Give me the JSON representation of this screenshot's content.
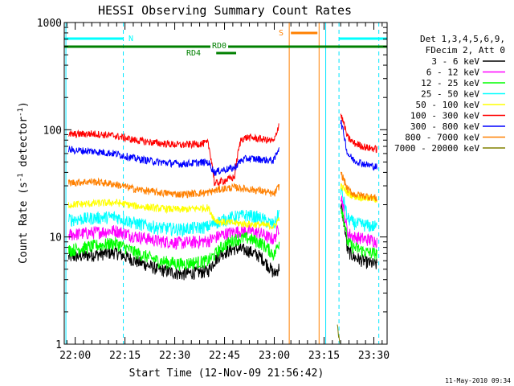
{
  "chart_data": {
    "type": "line",
    "title": "HESSI Observing Summary Count Rates",
    "xlabel": "Start Time (12-Nov-09 21:56:42)",
    "ylabel_main": "Count Rate (s",
    "ylabel_sup1": "-1",
    "ylabel_mid": " detector",
    "ylabel_sup2": "-1",
    "ylabel_end": ")",
    "x_ticks": [
      "22:00",
      "22:15",
      "22:30",
      "22:45",
      "23:00",
      "23:15",
      "23:30"
    ],
    "x_tick_minutes": [
      0,
      15,
      30,
      45,
      60,
      75,
      90
    ],
    "x_range_minutes": [
      -3.3,
      94
    ],
    "y_scale": "log",
    "y_range": [
      1,
      1000
    ],
    "y_ticks": [
      "1",
      "10",
      "100",
      "1000"
    ],
    "y_tick_values": [
      1,
      10,
      100,
      1000
    ],
    "legend_title": [
      "Det 1,3,4,5,6,9,",
      "FDecim 2, Att 0"
    ],
    "series": [
      {
        "name": "3 - 6 keV",
        "color": "#000000",
        "x": [
          -2,
          5,
          12,
          18,
          25,
          32,
          40,
          42,
          44,
          48,
          52,
          56,
          58,
          60,
          61.5,
          80,
          82,
          84,
          88,
          91
        ],
        "y": [
          6.5,
          6.8,
          7.2,
          6.0,
          5.0,
          4.5,
          4.8,
          6.0,
          7.0,
          7.8,
          7.5,
          6.5,
          5.5,
          4.5,
          5.2,
          20,
          7.5,
          6.5,
          5.8,
          5.5
        ]
      },
      {
        "name": "6 - 12 keV",
        "color": "#ff00ff",
        "x": [
          -2,
          5,
          12,
          18,
          25,
          32,
          40,
          42,
          44,
          48,
          52,
          56,
          58,
          60,
          61.5,
          80,
          82,
          84,
          88,
          91
        ],
        "y": [
          10.5,
          11,
          11.5,
          10.2,
          9.2,
          8.8,
          9.2,
          9.8,
          10.5,
          11.2,
          11.5,
          10.8,
          10,
          9.5,
          12.5,
          25,
          11,
          10,
          9.5,
          9.2
        ]
      },
      {
        "name": "12 - 25 keV",
        "color": "#00ff00",
        "x": [
          -2,
          5,
          12,
          18,
          25,
          32,
          40,
          42,
          44,
          48,
          52,
          56,
          58,
          60,
          61.5,
          80,
          82,
          84,
          88,
          91
        ],
        "y": [
          7.5,
          8.2,
          8.8,
          7.2,
          6.0,
          5.6,
          6.0,
          6.8,
          8.0,
          9.5,
          9.8,
          8.8,
          7.8,
          6.8,
          9.0,
          20,
          9.0,
          8.0,
          7.2,
          7.0
        ]
      },
      {
        "name": "25 - 50 keV",
        "color": "#00ffff",
        "x": [
          -2,
          5,
          12,
          18,
          25,
          32,
          40,
          42,
          44,
          48,
          52,
          56,
          58,
          60,
          61.5,
          80,
          82,
          84,
          88,
          91
        ],
        "y": [
          14.5,
          15,
          15.5,
          13.5,
          12.2,
          11.8,
          12.5,
          13.5,
          14.2,
          15.5,
          16,
          15,
          13.8,
          13,
          17,
          28,
          15,
          13.5,
          12.8,
          12.5
        ]
      },
      {
        "name": "50 - 100 keV",
        "color": "#ffff00",
        "x": [
          -2,
          5,
          12,
          18,
          25,
          32,
          40,
          42,
          44,
          48,
          52,
          56,
          58,
          60,
          61.5,
          80,
          82,
          84,
          88,
          91
        ],
        "y": [
          20,
          20.5,
          21,
          19.5,
          18.5,
          18,
          18.8,
          14.5,
          13.8,
          13.5,
          13.2,
          13,
          12.8,
          12.5,
          15,
          30,
          26,
          24,
          23,
          22.5
        ]
      },
      {
        "name": "100 - 300 keV",
        "color": "#ff0000",
        "x": [
          -2,
          5,
          12,
          18,
          25,
          32,
          40,
          42,
          44,
          48,
          50,
          52,
          56,
          58,
          60,
          61.5,
          80,
          82,
          84,
          88,
          91
        ],
        "y": [
          90,
          92,
          88,
          80,
          75,
          72,
          75,
          31,
          33,
          36,
          82,
          85,
          82,
          80,
          78,
          115,
          140,
          85,
          75,
          68,
          66
        ]
      },
      {
        "name": "300 - 800 keV",
        "color": "#0000ff",
        "x": [
          -2,
          5,
          12,
          18,
          25,
          32,
          40,
          42,
          44,
          48,
          50,
          52,
          56,
          58,
          60,
          61.5,
          80,
          82,
          84,
          88,
          91
        ],
        "y": [
          65,
          63,
          60,
          54,
          50,
          48,
          50,
          40,
          42,
          44,
          52,
          54,
          53,
          52,
          52,
          70,
          120,
          60,
          52,
          47,
          45
        ]
      },
      {
        "name": "800 - 7000 keV",
        "color": "#ff8000",
        "x": [
          -2,
          5,
          12,
          18,
          25,
          32,
          40,
          42,
          44,
          48,
          52,
          56,
          58,
          60,
          61.5,
          80,
          82,
          84,
          88,
          91
        ],
        "y": [
          32,
          33,
          31,
          28,
          26,
          25,
          26,
          27,
          28,
          29,
          28,
          27,
          26,
          25,
          30,
          40,
          28,
          25,
          24,
          23
        ]
      },
      {
        "name": "7000 - 20000 keV",
        "color": "#808000",
        "x": [
          79,
          79.4,
          79.8
        ],
        "y": [
          1.5,
          1.2,
          1.0
        ]
      }
    ],
    "flags": [
      {
        "label": "N",
        "color": "#00ffff",
        "segments": [
          [
            -3.3,
            14.5
          ],
          [
            79.5,
            94
          ]
        ]
      },
      {
        "label": "RD0",
        "color": "#008000",
        "segments": [
          [
            -3.3,
            94
          ]
        ]
      },
      {
        "label": "RD4",
        "color": "#008000",
        "segments": [
          [
            42.5,
            48.5
          ]
        ]
      },
      {
        "label": "S",
        "color": "#ff8000",
        "segments": [
          [
            65,
            73
          ]
        ]
      }
    ],
    "vertical_markers": {
      "dashed_cyan_minutes": [
        14.5,
        79.5,
        91.5
      ],
      "solid_cyan_minutes": [
        -2.8,
        75.5
      ],
      "orange_minutes": [
        64.5,
        73.5
      ]
    },
    "grid": false,
    "legend_position": "right"
  },
  "timestamp": "11-May-2010 09:34"
}
